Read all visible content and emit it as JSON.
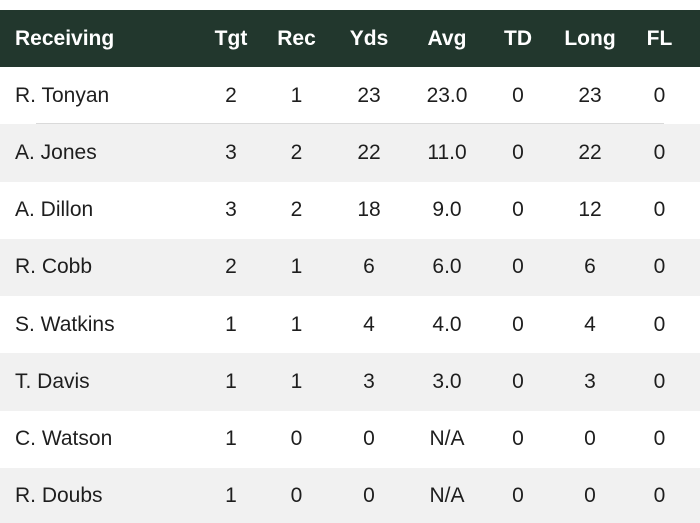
{
  "table": {
    "columns": [
      "Receiving",
      "Tgt",
      "Rec",
      "Yds",
      "Avg",
      "TD",
      "Long",
      "FL"
    ],
    "rows": [
      [
        "R. Tonyan",
        "2",
        "1",
        "23",
        "23.0",
        "0",
        "23",
        "0"
      ],
      [
        "A. Jones",
        "3",
        "2",
        "22",
        "11.0",
        "0",
        "22",
        "0"
      ],
      [
        "A. Dillon",
        "3",
        "2",
        "18",
        "9.0",
        "0",
        "12",
        "0"
      ],
      [
        "R. Cobb",
        "2",
        "1",
        "6",
        "6.0",
        "0",
        "6",
        "0"
      ],
      [
        "S. Watkins",
        "1",
        "1",
        "4",
        "4.0",
        "0",
        "4",
        "0"
      ],
      [
        "T. Davis",
        "1",
        "1",
        "3",
        "3.0",
        "0",
        "3",
        "0"
      ],
      [
        "C. Watson",
        "1",
        "0",
        "0",
        "N/A",
        "0",
        "0",
        "0"
      ],
      [
        "R. Doubs",
        "1",
        "0",
        "0",
        "N/A",
        "0",
        "0",
        "0"
      ]
    ]
  },
  "colors": {
    "header_bg": "#22372d",
    "header_text": "#ffffff",
    "row_alt_bg": "#f1f1f1",
    "text": "#1e1e1e"
  }
}
